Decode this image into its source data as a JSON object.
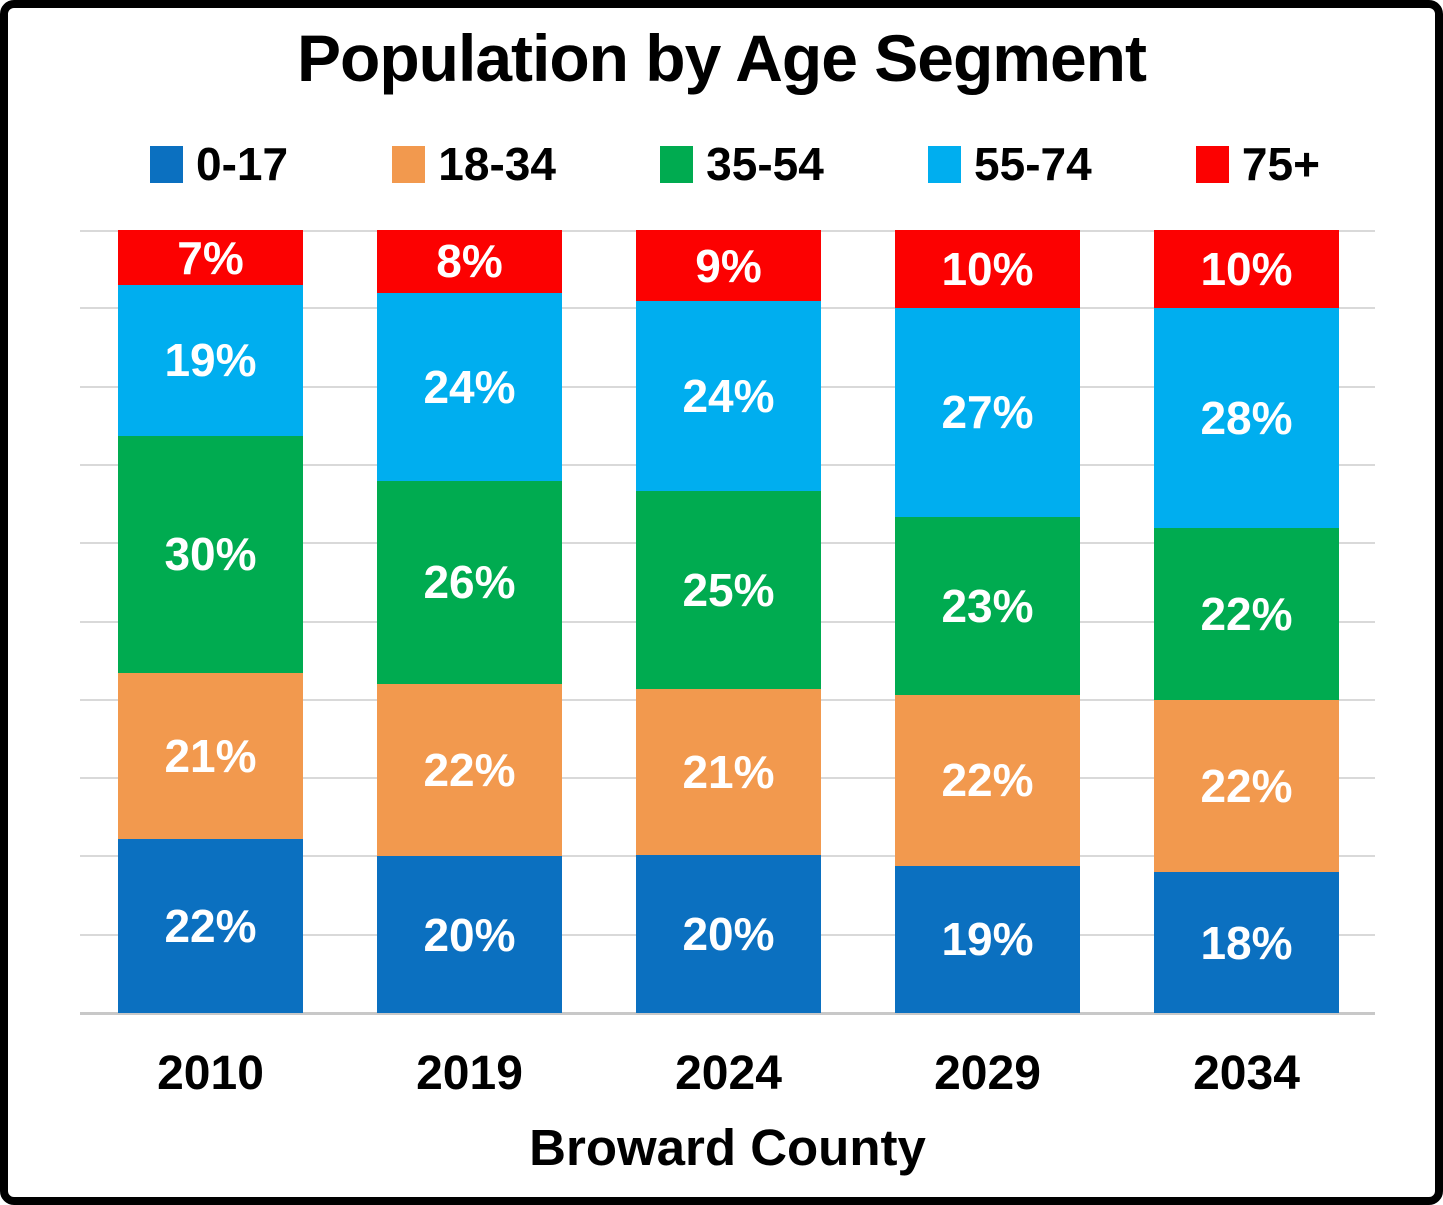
{
  "frame": {
    "border_color": "#000000",
    "background_color": "#FFFFFF"
  },
  "chart_data": {
    "type": "bar",
    "variant": "stacked-column",
    "title": "Population by Age Segment",
    "xlabel": "Broward County",
    "ylabel": "",
    "categories": [
      "2010",
      "2019",
      "2024",
      "2029",
      "2034"
    ],
    "series": [
      {
        "name": "0-17",
        "color": "#0B70C0",
        "values": [
          22,
          20,
          20,
          19,
          18
        ]
      },
      {
        "name": "18-34",
        "color": "#F2994E",
        "values": [
          21,
          22,
          21,
          22,
          22
        ]
      },
      {
        "name": "35-54",
        "color": "#00AB50",
        "values": [
          30,
          26,
          25,
          23,
          22
        ]
      },
      {
        "name": "55-74",
        "color": "#00AEEF",
        "values": [
          19,
          24,
          24,
          27,
          28
        ]
      },
      {
        "name": "75+",
        "color": "#FC0101",
        "values": [
          7,
          8,
          9,
          10,
          10
        ]
      }
    ],
    "value_suffix": "%",
    "data_label_color": "#FFFFFF",
    "ylim": [
      0,
      100
    ],
    "gridline_step": 10,
    "grid": true,
    "grid_color": "#D9D9D9",
    "axis_line_color": "#C8C8C8",
    "legend_position": "top"
  }
}
